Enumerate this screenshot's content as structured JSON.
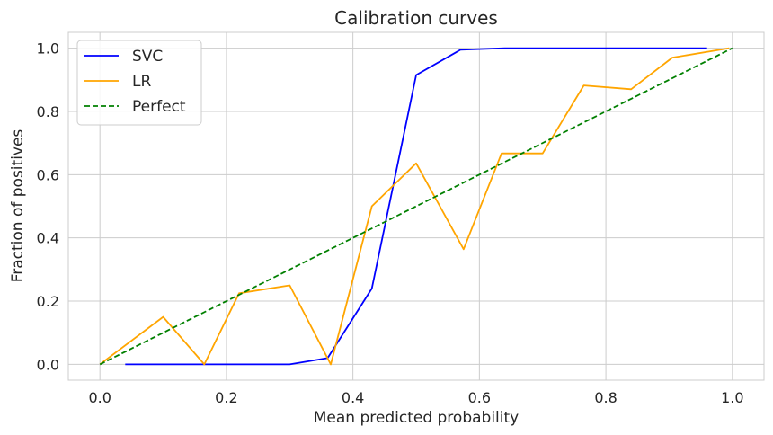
{
  "chart_data": {
    "type": "line",
    "title": "Calibration curves",
    "xlabel": "Mean predicted probability",
    "ylabel": "Fraction of positives",
    "xlim": [
      -0.05,
      1.05
    ],
    "ylim": [
      -0.05,
      1.05
    ],
    "xticks": [
      0.0,
      0.2,
      0.4,
      0.6,
      0.8,
      1.0
    ],
    "yticks": [
      0.0,
      0.2,
      0.4,
      0.6,
      0.8,
      1.0
    ],
    "xtick_labels": [
      "0.0",
      "0.2",
      "0.4",
      "0.6",
      "0.8",
      "1.0"
    ],
    "ytick_labels": [
      "0.0",
      "0.2",
      "0.4",
      "0.6",
      "0.8",
      "1.0"
    ],
    "grid": true,
    "legend_position": "top-left",
    "series": [
      {
        "name": "SVC",
        "color": "#0000ff",
        "style": "solid",
        "x": [
          0.04,
          0.1,
          0.17,
          0.23,
          0.3,
          0.36,
          0.43,
          0.5,
          0.57,
          0.64,
          0.7,
          0.77,
          0.83,
          0.9,
          0.96
        ],
        "y": [
          0.0,
          0.0,
          0.0,
          0.0,
          0.0,
          0.02,
          0.24,
          0.915,
          0.995,
          1.0,
          1.0,
          1.0,
          1.0,
          1.0,
          1.0
        ]
      },
      {
        "name": "LR",
        "color": "#ffa500",
        "style": "solid",
        "x": [
          0.0,
          0.1,
          0.165,
          0.22,
          0.3,
          0.365,
          0.43,
          0.5,
          0.575,
          0.635,
          0.7,
          0.765,
          0.84,
          0.905,
          0.995
        ],
        "y": [
          0.0,
          0.15,
          0.0,
          0.225,
          0.25,
          0.0,
          0.5,
          0.636,
          0.364,
          0.667,
          0.667,
          0.882,
          0.87,
          0.97,
          1.0
        ]
      },
      {
        "name": "Perfect",
        "color": "#008000",
        "style": "dashed",
        "x": [
          0.0,
          1.0
        ],
        "y": [
          0.0,
          1.0
        ]
      }
    ]
  }
}
